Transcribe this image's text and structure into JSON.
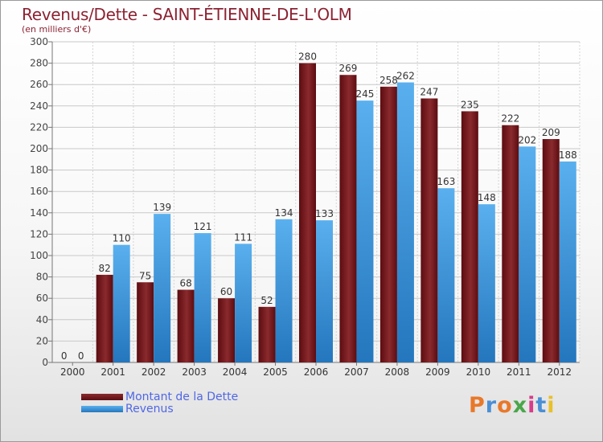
{
  "chart_data": {
    "type": "bar",
    "title": "Revenus/Dette - SAINT-ÉTIENNE-DE-L'OLM",
    "subtitle": "(en milliers d'€)",
    "categories": [
      "2000",
      "2001",
      "2002",
      "2003",
      "2004",
      "2005",
      "2006",
      "2007",
      "2008",
      "2009",
      "2010",
      "2011",
      "2012"
    ],
    "series": [
      {
        "name": "Montant de la Dette",
        "values": [
          0,
          82,
          75,
          68,
          60,
          52,
          280,
          269,
          258,
          247,
          235,
          222,
          209
        ]
      },
      {
        "name": "Revenus",
        "values": [
          0,
          110,
          139,
          121,
          111,
          134,
          133,
          245,
          262,
          163,
          148,
          202,
          188
        ]
      }
    ],
    "ylim": [
      0,
      300
    ],
    "yticks": [
      0,
      20,
      40,
      60,
      80,
      100,
      120,
      140,
      160,
      180,
      200,
      220,
      240,
      260,
      280,
      300
    ],
    "grid": true,
    "legend_position": "bottom-left",
    "colors": {
      "dette_dark": "#5c0c10",
      "dette_light": "#8a2a2e",
      "revenus_dark": "#2476bd",
      "revenus_light": "#5ab0ee",
      "title": "#8c2232",
      "legend_text": "#4f67e6"
    }
  },
  "branding": {
    "logo_text": "Proxiti",
    "logo_colors": [
      "#e8792a",
      "#4a8fd6",
      "#e8792a",
      "#4aa64a",
      "#d63c8a",
      "#4a8fd6",
      "#e8c02a"
    ]
  }
}
